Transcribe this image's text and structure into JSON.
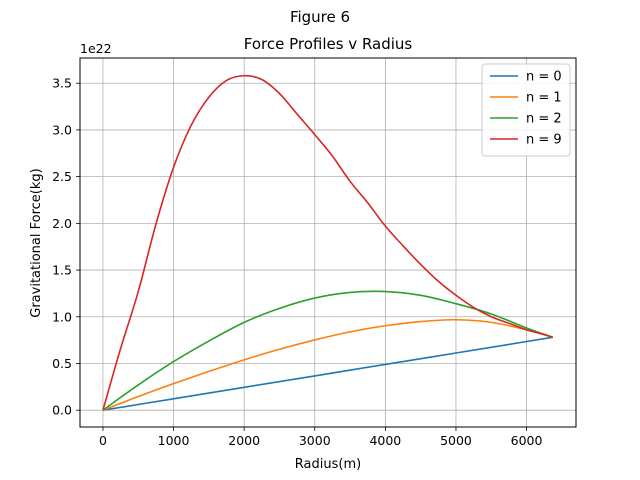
{
  "figure": {
    "suptitle": "Figure 6"
  },
  "chart_data": {
    "type": "line",
    "title": "Force Profiles v Radius",
    "xlabel": "Radius(m)",
    "ylabel": "Gravitational Force(kg)",
    "y_offset_text": "1e22",
    "y_scale_multiplier": 1e+22,
    "xlim": [
      -325,
      6700
    ],
    "ylim": [
      -0.18,
      3.77
    ],
    "xticks": [
      0,
      1000,
      2000,
      3000,
      4000,
      5000,
      6000
    ],
    "xtick_labels": [
      "0",
      "1000",
      "2000",
      "3000",
      "4000",
      "5000",
      "6000"
    ],
    "yticks": [
      0.0,
      0.5,
      1.0,
      1.5,
      2.0,
      2.5,
      3.0,
      3.5
    ],
    "ytick_labels": [
      "0.0",
      "0.5",
      "1.0",
      "1.5",
      "2.0",
      "2.5",
      "3.0",
      "3.5"
    ],
    "grid": true,
    "legend_position": "top-right",
    "series": [
      {
        "name": "n = 0",
        "color": "#1f77b4",
        "x": [
          0,
          1000,
          2000,
          3000,
          4000,
          5000,
          6000,
          6371
        ],
        "y": [
          0.0,
          0.122,
          0.245,
          0.367,
          0.49,
          0.612,
          0.735,
          0.78
        ]
      },
      {
        "name": "n = 1",
        "color": "#ff7f0e",
        "x": [
          0,
          500,
          1000,
          1500,
          2000,
          2500,
          3000,
          3500,
          4000,
          4500,
          5000,
          5500,
          6000,
          6371
        ],
        "y": [
          0.0,
          0.146,
          0.284,
          0.415,
          0.539,
          0.652,
          0.752,
          0.838,
          0.904,
          0.949,
          0.968,
          0.94,
          0.86,
          0.78
        ]
      },
      {
        "name": "n = 2",
        "color": "#2ca02c",
        "x": [
          0,
          500,
          1000,
          1500,
          2000,
          2500,
          3000,
          3500,
          4000,
          4500,
          5000,
          5500,
          6000,
          6371
        ],
        "y": [
          0.0,
          0.27,
          0.52,
          0.74,
          0.94,
          1.09,
          1.2,
          1.26,
          1.27,
          1.23,
          1.14,
          1.03,
          0.88,
          0.78
        ]
      },
      {
        "name": "n = 9",
        "color": "#d62728",
        "x": [
          0,
          250,
          500,
          750,
          1000,
          1250,
          1500,
          1750,
          2000,
          2250,
          2500,
          2750,
          3000,
          3250,
          3500,
          3750,
          4000,
          4250,
          4500,
          4750,
          5000,
          5250,
          5500,
          5750,
          6000,
          6250,
          6371
        ],
        "y": [
          0.0,
          0.66,
          1.27,
          1.99,
          2.6,
          3.05,
          3.35,
          3.53,
          3.58,
          3.54,
          3.39,
          3.17,
          2.95,
          2.72,
          2.45,
          2.22,
          1.97,
          1.76,
          1.56,
          1.38,
          1.23,
          1.1,
          1.0,
          0.93,
          0.86,
          0.81,
          0.78
        ]
      }
    ]
  }
}
